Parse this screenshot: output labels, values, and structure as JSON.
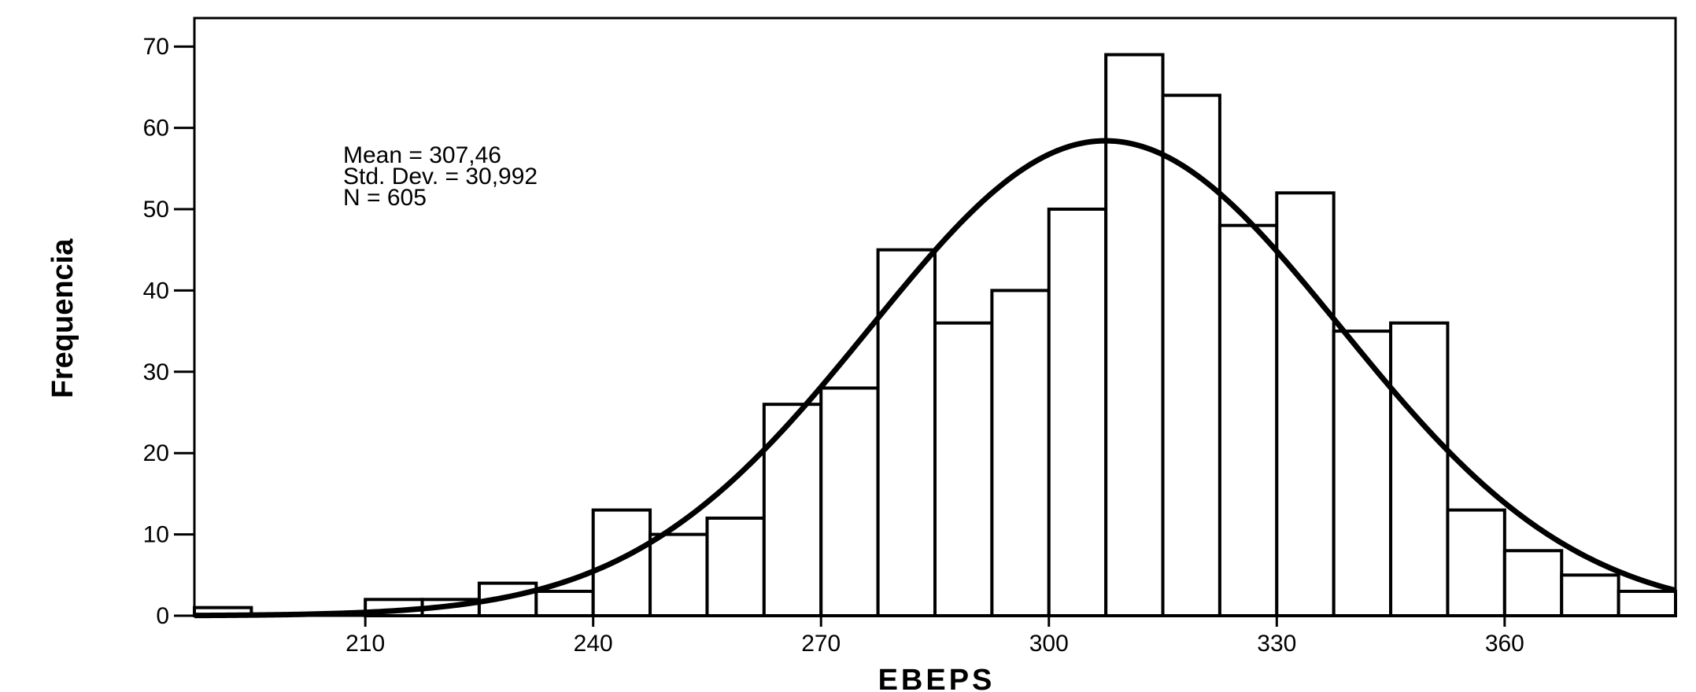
{
  "chart_data": {
    "type": "bar",
    "subtype": "histogram",
    "xlabel": "EBEPS",
    "ylabel": "Frequencia",
    "xlim": [
      187.5,
      382.5
    ],
    "ylim": [
      0,
      73.5
    ],
    "x_ticks": [
      210,
      240,
      270,
      300,
      330,
      360
    ],
    "y_ticks": [
      0,
      10,
      20,
      30,
      40,
      50,
      60,
      70
    ],
    "bin_width": 7.5,
    "bins": [
      {
        "start": 187.5,
        "value": 1
      },
      {
        "start": 195.0,
        "value": 0
      },
      {
        "start": 202.5,
        "value": 0
      },
      {
        "start": 210.0,
        "value": 2
      },
      {
        "start": 217.5,
        "value": 2
      },
      {
        "start": 225.0,
        "value": 4
      },
      {
        "start": 232.5,
        "value": 3
      },
      {
        "start": 240.0,
        "value": 13
      },
      {
        "start": 247.5,
        "value": 10
      },
      {
        "start": 255.0,
        "value": 12
      },
      {
        "start": 262.5,
        "value": 26
      },
      {
        "start": 270.0,
        "value": 28
      },
      {
        "start": 277.5,
        "value": 45
      },
      {
        "start": 285.0,
        "value": 36
      },
      {
        "start": 292.5,
        "value": 40
      },
      {
        "start": 300.0,
        "value": 50
      },
      {
        "start": 307.5,
        "value": 69
      },
      {
        "start": 315.0,
        "value": 64
      },
      {
        "start": 322.5,
        "value": 48
      },
      {
        "start": 330.0,
        "value": 52
      },
      {
        "start": 337.5,
        "value": 35
      },
      {
        "start": 345.0,
        "value": 36
      },
      {
        "start": 352.5,
        "value": 13
      },
      {
        "start": 360.0,
        "value": 8
      },
      {
        "start": 367.5,
        "value": 5
      },
      {
        "start": 375.0,
        "value": 3
      }
    ],
    "normal_curve": {
      "mean": 307.46,
      "sd": 30.992,
      "n": 605
    },
    "stats_text": [
      "Mean = 307,46",
      "Std. Dev. = 30,992",
      "N = 605"
    ],
    "grid": false,
    "colors": {
      "bar_fill": "#ffffff",
      "bar_stroke": "#000000",
      "curve": "#000000"
    }
  }
}
